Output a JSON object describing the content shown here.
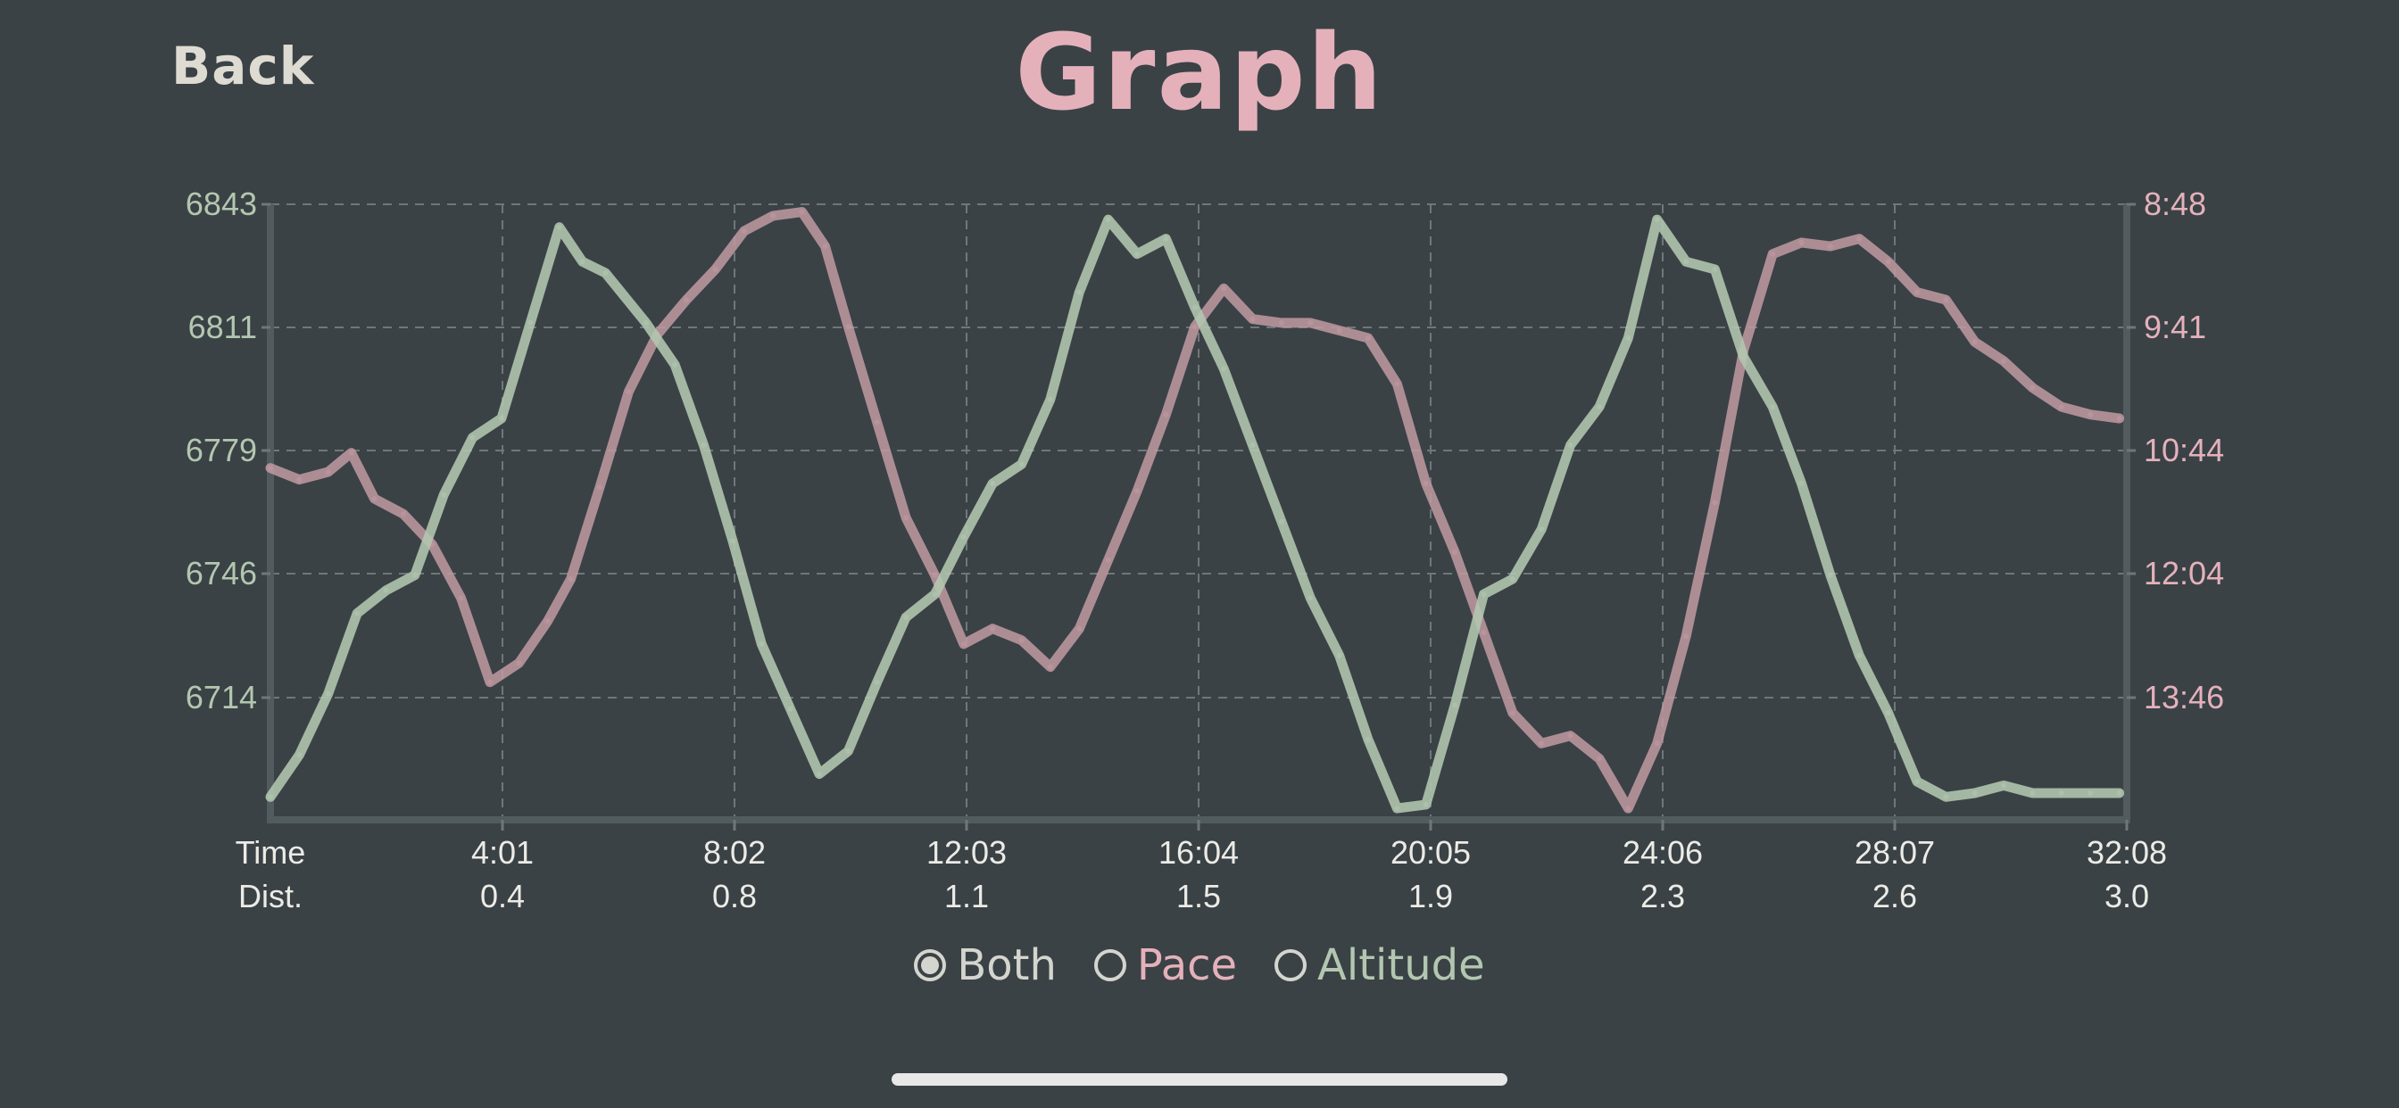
{
  "header": {
    "back_label": "Back",
    "title": "Graph"
  },
  "legend": {
    "both_label": "Both",
    "pace_label": "Pace",
    "altitude_label": "Altitude",
    "selected": "Both"
  },
  "colors": {
    "background": "#3a4246",
    "altitude": "#b3c7b0",
    "pace": "#c29aa2",
    "title": "#e4b1bb",
    "grid": "#6f7779",
    "axis": "#525b5e",
    "label": "#d5d5cf"
  },
  "chart_data": {
    "type": "line",
    "y_left": {
      "label": "",
      "ticks": [
        "6843",
        "6811",
        "6779",
        "6746",
        "6714"
      ],
      "range": [
        6682,
        6843
      ]
    },
    "y_right": {
      "label": "",
      "ticks": [
        "8:48",
        "9:41",
        "10:44",
        "12:04",
        "13:46"
      ]
    },
    "x_ticks": [
      {
        "time": "Time",
        "dist": "Dist."
      },
      {
        "time": "4:01",
        "dist": "0.4"
      },
      {
        "time": "8:02",
        "dist": "0.8"
      },
      {
        "time": "12:03",
        "dist": "1.1"
      },
      {
        "time": "16:04",
        "dist": "1.5"
      },
      {
        "time": "20:05",
        "dist": "1.9"
      },
      {
        "time": "24:06",
        "dist": "2.3"
      },
      {
        "time": "28:07",
        "dist": "2.6"
      },
      {
        "time": "32:08",
        "dist": "3.0"
      }
    ],
    "x_range_minutes": [
      0,
      32.13
    ],
    "grid": true,
    "series": [
      {
        "name": "Altitude",
        "color": "#b3c7b0",
        "x_minutes": [
          0,
          0.5,
          1,
          1.5,
          2,
          2.5,
          3,
          3.5,
          4,
          4.5,
          5,
          5.4,
          5.8,
          6.5,
          7,
          7.5,
          8,
          8.5,
          9,
          9.5,
          10,
          10.5,
          11,
          11.5,
          12,
          12.5,
          13,
          13.5,
          14,
          14.5,
          15,
          15.5,
          16,
          16.5,
          17,
          17.5,
          18,
          18.5,
          19,
          19.5,
          20,
          20.5,
          21,
          21.5,
          22,
          22.5,
          23,
          23.5,
          24,
          24.5,
          25,
          25.5,
          26,
          26.5,
          27,
          27.5,
          28,
          28.5,
          29,
          29.5,
          30,
          30.5,
          31,
          31.5,
          32
        ],
        "values": [
          6688,
          6699,
          6715,
          6736,
          6742,
          6746,
          6767,
          6782,
          6787,
          6812,
          6837,
          6828,
          6825,
          6812,
          6801,
          6780,
          6755,
          6728,
          6711,
          6694,
          6700,
          6718,
          6735,
          6741,
          6756,
          6770,
          6775,
          6792,
          6820,
          6839,
          6830,
          6834,
          6816,
          6800,
          6780,
          6760,
          6740,
          6725,
          6703,
          6685,
          6686,
          6712,
          6741,
          6745,
          6758,
          6780,
          6790,
          6808,
          6839,
          6828,
          6826,
          6803,
          6790,
          6770,
          6746,
          6725,
          6710,
          6692,
          6688,
          6689,
          6691,
          6689,
          6689,
          6689,
          6689
        ]
      },
      {
        "name": "Pace",
        "color": "#c29aa2",
        "x_minutes": [
          0,
          0.5,
          1,
          1.4,
          1.8,
          2.3,
          2.8,
          3.3,
          3.8,
          4.3,
          4.8,
          5.2,
          5.7,
          6.2,
          6.7,
          7.2,
          7.7,
          8.2,
          8.7,
          9.2,
          9.6,
          10,
          10.5,
          11,
          11.5,
          12,
          12.5,
          13,
          13.5,
          14,
          14.5,
          15,
          15.5,
          16,
          16.5,
          17,
          17.5,
          18,
          18.5,
          19,
          19.5,
          20,
          20.5,
          21,
          21.5,
          22,
          22.5,
          23,
          23.5,
          24,
          24.5,
          25,
          25.5,
          26,
          26.5,
          27,
          27.5,
          28,
          28.5,
          29,
          29.5,
          30,
          30.5,
          31,
          31.5,
          32
        ],
        "values": [
          6774,
          6771,
          6773,
          6778,
          6766,
          6762,
          6754,
          6740,
          6718,
          6723,
          6734,
          6745,
          6769,
          6794,
          6809,
          6818,
          6826,
          6836,
          6840,
          6841,
          6832,
          6811,
          6786,
          6761,
          6746,
          6728,
          6732,
          6729,
          6722,
          6732,
          6750,
          6768,
          6788,
          6811,
          6821,
          6813,
          6812,
          6812,
          6810,
          6808,
          6796,
          6770,
          6752,
          6731,
          6710,
          6702,
          6704,
          6698,
          6685,
          6702,
          6730,
          6765,
          6805,
          6830,
          6833,
          6832,
          6834,
          6828,
          6820,
          6818,
          6807,
          6802,
          6795,
          6790,
          6788,
          6787
        ]
      }
    ]
  }
}
